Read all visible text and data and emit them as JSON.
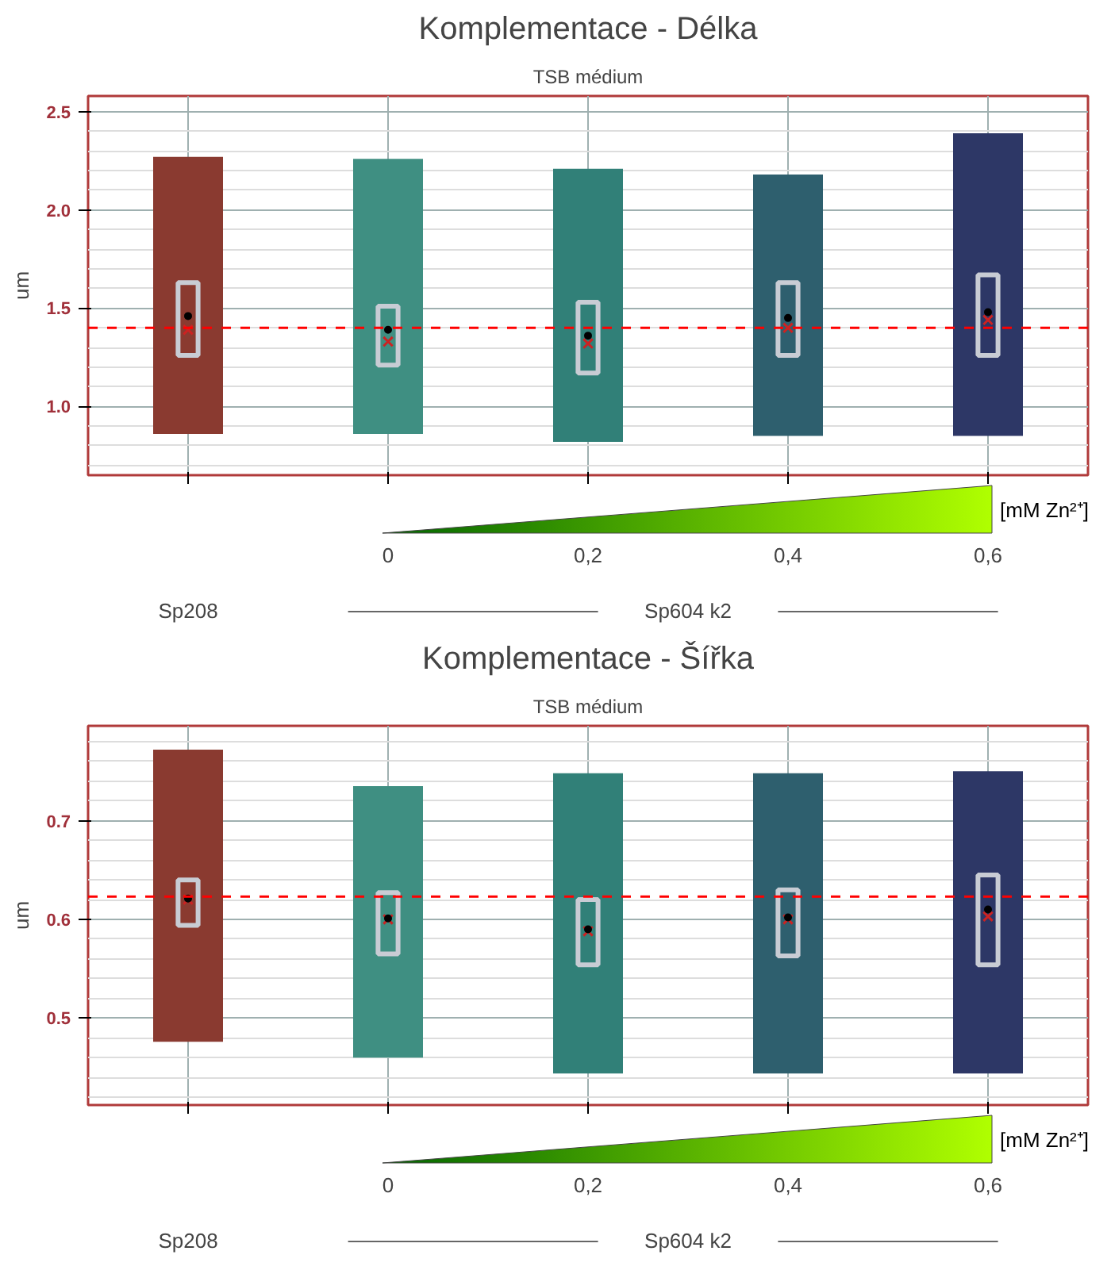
{
  "chart_data": [
    {
      "type": "box",
      "title": "Komplementace - Délka",
      "subtitle": "TSB médium",
      "ylabel": "um",
      "categories": [
        null,
        null,
        null,
        null,
        null
      ],
      "colors": [
        "#8a3a30",
        "#3f8f82",
        "#318078",
        "#2e5f6e",
        "#2d3766"
      ],
      "boxes": [
        {
          "low": 0.86,
          "q1": 1.26,
          "median": 1.39,
          "q3": 1.63,
          "high": 2.27,
          "mean": 1.46
        },
        {
          "low": 0.86,
          "q1": 1.21,
          "median": 1.33,
          "q3": 1.51,
          "high": 2.26,
          "mean": 1.39
        },
        {
          "low": 0.82,
          "q1": 1.17,
          "median": 1.32,
          "q3": 1.53,
          "high": 2.21,
          "mean": 1.36
        },
        {
          "low": 0.85,
          "q1": 1.26,
          "median": 1.4,
          "q3": 1.63,
          "high": 2.18,
          "mean": 1.45
        },
        {
          "low": 0.85,
          "q1": 1.26,
          "median": 1.44,
          "q3": 1.67,
          "high": 2.39,
          "mean": 1.48
        }
      ],
      "ylim": [
        0.65,
        2.58
      ],
      "yticks": [
        {
          "value": 1.0,
          "label": "1.0"
        },
        {
          "value": 1.5,
          "label": "1.5"
        },
        {
          "value": 2.0,
          "label": "2.0"
        },
        {
          "value": 2.5,
          "label": "2.5"
        }
      ],
      "ref_lines": [
        {
          "axis": "y",
          "value": 1.4,
          "color": "#ff0000",
          "line_style": "dashed"
        }
      ],
      "grid": true,
      "annotations": [
        "[mM Zn²⁺]",
        "0",
        "0,2",
        "0,4",
        "0,6",
        "Sp208",
        "Sp604 k2"
      ]
    },
    {
      "type": "box",
      "title": "Komplementace - Šířka",
      "subtitle": "TSB médium",
      "ylabel": "um",
      "categories": [
        null,
        null,
        null,
        null,
        null
      ],
      "colors": [
        "#8a3a30",
        "#3f8f82",
        "#318078",
        "#2e5f6e",
        "#2d3766"
      ],
      "boxes": [
        {
          "low": 0.476,
          "q1": 0.594,
          "median": 0.62,
          "q3": 0.64,
          "high": 0.772,
          "mean": 0.621
        },
        {
          "low": 0.46,
          "q1": 0.565,
          "median": 0.6,
          "q3": 0.627,
          "high": 0.735,
          "mean": 0.601
        },
        {
          "low": 0.444,
          "q1": 0.554,
          "median": 0.588,
          "q3": 0.62,
          "high": 0.748,
          "mean": 0.59
        },
        {
          "low": 0.444,
          "q1": 0.563,
          "median": 0.6,
          "q3": 0.63,
          "high": 0.748,
          "mean": 0.602
        },
        {
          "low": 0.444,
          "q1": 0.554,
          "median": 0.603,
          "q3": 0.645,
          "high": 0.75,
          "mean": 0.61
        }
      ],
      "ylim": [
        0.412,
        0.796
      ],
      "yticks": [
        0.5,
        0.6,
        0.7
      ],
      "ref_lines": [
        {
          "axis": "y",
          "value": 0.623,
          "color": "#ff0000",
          "line_style": "dashed"
        }
      ],
      "grid": true,
      "annotations": [
        "[mM Zn²⁺]",
        "0",
        "0,2",
        "0,4",
        "0,6",
        "Sp208",
        "Sp604 k2"
      ]
    }
  ]
}
